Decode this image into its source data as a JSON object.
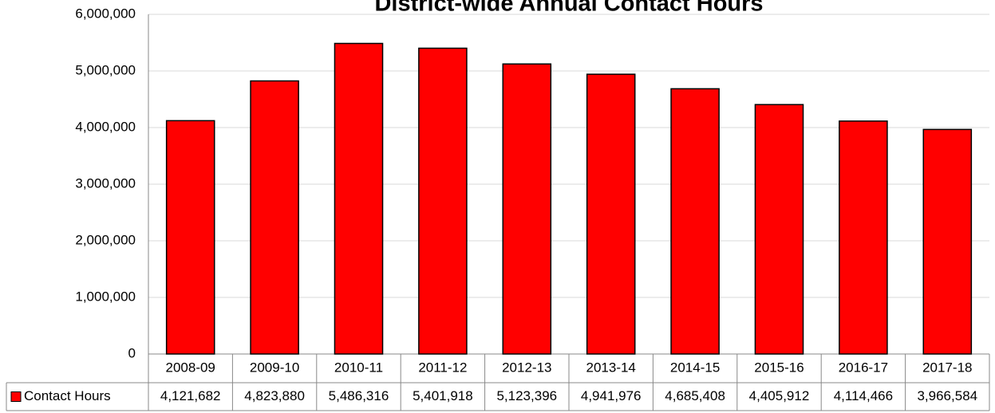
{
  "chart_data": {
    "type": "bar",
    "title": "District-wide Annual Contact Hours",
    "categories": [
      "2008-09",
      "2009-10",
      "2010-11",
      "2011-12",
      "2012-13",
      "2013-14",
      "2014-15",
      "2015-16",
      "2016-17",
      "2017-18"
    ],
    "series": [
      {
        "name": "Contact Hours",
        "color": "#ff0000",
        "values": [
          4121682,
          4823880,
          5486316,
          5401918,
          5123396,
          4941976,
          4685408,
          4405912,
          4114466,
          3966584
        ],
        "value_labels": [
          "4,121,682",
          "4,823,880",
          "5,486,316",
          "5,401,918",
          "5,123,396",
          "4,941,976",
          "4,685,408",
          "4,405,912",
          "4,114,466",
          "3,966,584"
        ]
      }
    ],
    "ylim": [
      0,
      6000000
    ],
    "yticks": [
      0,
      {
        "value": 1000000,
        "label": "1,000,000"
      },
      {
        "value": 2000000,
        "label": "2,000,000"
      },
      {
        "value": 3000000,
        "label": "3,000,000"
      },
      {
        "value": 4000000,
        "label": "4,000,000"
      },
      {
        "value": 5000000,
        "label": "5,000,000"
      },
      {
        "value": 6000000,
        "label": "6,000,000"
      }
    ],
    "grid": true
  }
}
